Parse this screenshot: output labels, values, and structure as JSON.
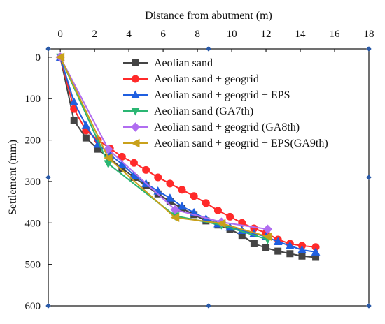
{
  "chart_data": {
    "type": "line",
    "xlabel": "Distance from abutment (m)",
    "ylabel": "Settlement (mm)",
    "xlim": [
      -0.7,
      18
    ],
    "ylim": [
      600,
      -20
    ],
    "x_ticks": [
      0,
      2,
      4,
      6,
      8,
      10,
      12,
      14,
      16,
      18
    ],
    "y_ticks": [
      0,
      100,
      200,
      300,
      400,
      500,
      600
    ],
    "x_tick_labels": [
      "0",
      "2",
      "4",
      "6",
      "8",
      "10",
      "12",
      "14",
      "16",
      "18"
    ],
    "y_tick_labels": [
      "0",
      "100",
      "200",
      "300",
      "400",
      "500",
      "600"
    ],
    "x_axis_position": "top",
    "y_axis_inverted": true,
    "grid": false,
    "legend_position": "top-center",
    "series": [
      {
        "name": "Aeolian sand",
        "color": "#444444",
        "marker": "square",
        "x": [
          0,
          0.8,
          1.5,
          2.2,
          2.9,
          3.6,
          4.3,
          5.0,
          5.7,
          6.4,
          7.1,
          7.8,
          8.5,
          9.2,
          9.9,
          10.6,
          11.3,
          12.0,
          12.7,
          13.4,
          14.1,
          14.9
        ],
        "y": [
          0,
          153,
          195,
          222,
          245,
          268,
          290,
          310,
          330,
          348,
          365,
          380,
          395,
          405,
          415,
          430,
          450,
          460,
          468,
          474,
          480,
          483
        ]
      },
      {
        "name": "Aeolian sand + geogrid",
        "color": "#ff2a2a",
        "marker": "circle",
        "x": [
          0,
          0.8,
          1.5,
          2.2,
          2.9,
          3.6,
          4.3,
          5.0,
          5.7,
          6.4,
          7.1,
          7.8,
          8.5,
          9.2,
          9.9,
          10.6,
          11.3,
          12.0,
          12.7,
          13.4,
          14.1,
          14.9
        ],
        "y": [
          0,
          125,
          177,
          200,
          220,
          240,
          255,
          272,
          290,
          305,
          320,
          335,
          352,
          370,
          385,
          400,
          413,
          424,
          440,
          450,
          455,
          458
        ]
      },
      {
        "name": "Aeolian sand + geogrid + EPS",
        "color": "#1f5fe0",
        "marker": "triangle-up",
        "x": [
          0,
          0.8,
          1.5,
          2.2,
          2.9,
          3.6,
          4.3,
          5.0,
          5.7,
          6.4,
          7.1,
          7.8,
          8.5,
          9.2,
          9.9,
          10.6,
          11.3,
          12.0,
          12.7,
          13.4,
          14.1,
          14.9
        ],
        "y": [
          0,
          108,
          165,
          210,
          235,
          258,
          285,
          305,
          323,
          340,
          360,
          375,
          390,
          402,
          410,
          418,
          425,
          433,
          445,
          455,
          465,
          470
        ]
      },
      {
        "name": "Aeolian sand (GA7th)",
        "color": "#2bb673",
        "marker": "triangle-down",
        "x": [
          0,
          2.8,
          6.7,
          9.4,
          12.1
        ],
        "y": [
          0,
          257,
          383,
          405,
          440
        ]
      },
      {
        "name": "Aeolian sand + geogrid (GA8th)",
        "color": "#b06df0",
        "marker": "diamond",
        "x": [
          0,
          2.8,
          6.7,
          9.4,
          12.1
        ],
        "y": [
          0,
          222,
          368,
          398,
          415
        ]
      },
      {
        "name": "Aeolian sand + geogrid + EPS(GA9th)",
        "color": "#c9a11b",
        "marker": "triangle-left",
        "x": [
          0,
          2.8,
          6.7,
          9.4,
          12.1
        ],
        "y": [
          0,
          243,
          387,
          401,
          433
        ]
      }
    ]
  }
}
